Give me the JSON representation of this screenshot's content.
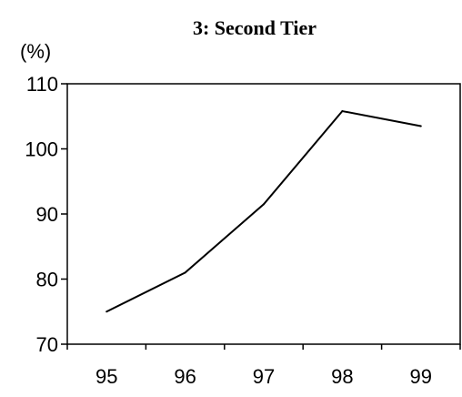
{
  "chart_data": {
    "type": "line",
    "title": "3: Second Tier",
    "ylabel": "(%)",
    "xlabel": "",
    "categories": [
      "95",
      "96",
      "97",
      "98",
      "99"
    ],
    "series": [
      {
        "values": [
          75.0,
          81.0,
          91.5,
          105.8,
          103.5
        ]
      }
    ],
    "ylim": [
      70,
      110
    ],
    "yticks": [
      70,
      80,
      90,
      100,
      110
    ],
    "grid": false,
    "line_color": "#000000"
  }
}
